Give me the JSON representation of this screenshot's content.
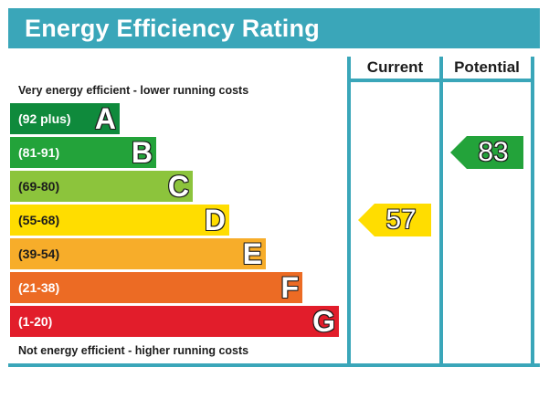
{
  "title": "Energy Efficiency Rating",
  "columns": {
    "current": "Current",
    "potential": "Potential"
  },
  "notes": {
    "top": "Very energy efficient - lower running costs",
    "bottom": "Not energy efficient - higher running costs"
  },
  "chart_data": {
    "type": "bar",
    "title": "Energy Efficiency Rating",
    "categories": [
      "A",
      "B",
      "C",
      "D",
      "E",
      "F",
      "G"
    ],
    "ranges": [
      "(92 plus)",
      "(81-91)",
      "(69-80)",
      "(55-68)",
      "(39-54)",
      "(21-38)",
      "(1-20)"
    ],
    "colors": [
      "#0f8a3c",
      "#23a33a",
      "#8cc43c",
      "#ffdd00",
      "#f7ad2a",
      "#ec6b24",
      "#e21d2b"
    ],
    "current": {
      "label": "Current",
      "value": 57,
      "band": "D",
      "color": "#ffdd00"
    },
    "potential": {
      "label": "Potential",
      "value": 83,
      "band": "B",
      "color": "#23a33a"
    }
  }
}
